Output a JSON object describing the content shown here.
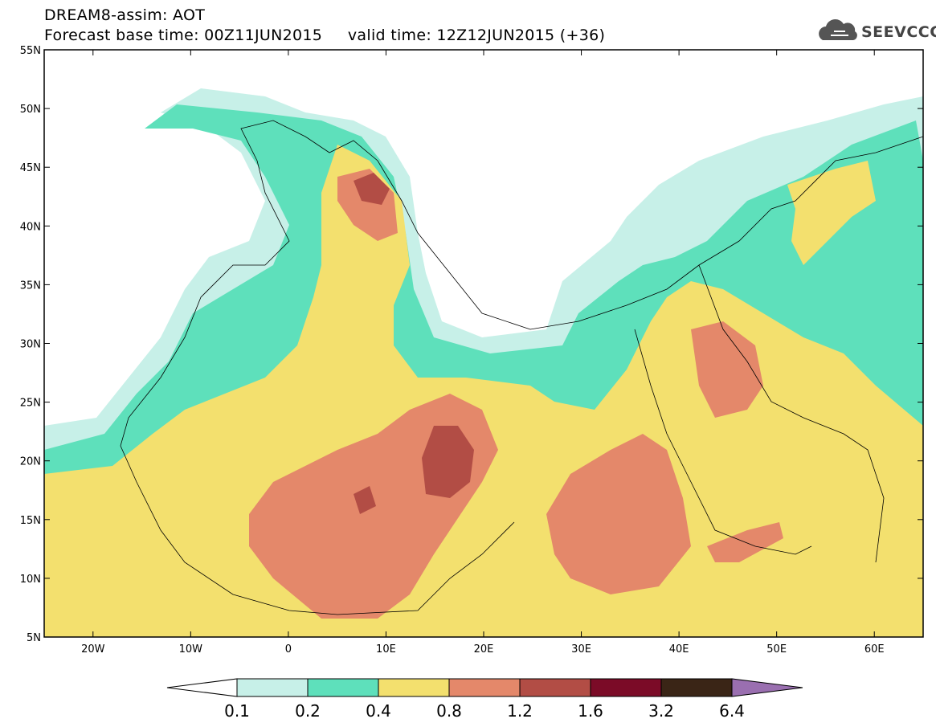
{
  "header": {
    "line1": "DREAM8-assim: AOT",
    "line2": "Forecast base time: 00Z11JUN2015     valid time: 12Z12JUN2015 (+36)",
    "logo_text": "SEEVCCC"
  },
  "map": {
    "lat_labels": [
      "55N",
      "50N",
      "45N",
      "40N",
      "35N",
      "30N",
      "25N",
      "20N",
      "15N",
      "10N",
      "5N"
    ],
    "lon_labels": [
      "20W",
      "10W",
      "0",
      "10E",
      "20E",
      "30E",
      "40E",
      "50E",
      "60E"
    ],
    "lat_range": [
      5,
      55
    ],
    "lon_range": [
      -25,
      65
    ]
  },
  "colorbar": {
    "labels": [
      "0.1",
      "0.2",
      "0.4",
      "0.8",
      "1.2",
      "1.6",
      "3.2",
      "6.4"
    ],
    "colors": {
      "under": "#ffffff",
      "c1": "#c7f0e8",
      "c2": "#5ee0bb",
      "c3": "#f3e06e",
      "c4": "#e4886a",
      "c5": "#b24d45",
      "c6": "#7b0b27",
      "c7": "#3a2516",
      "over": "#9a6fb0"
    }
  }
}
